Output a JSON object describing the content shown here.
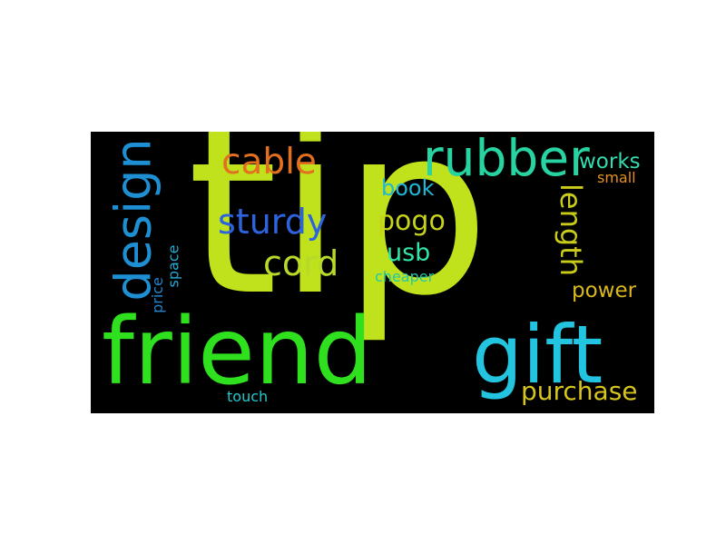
{
  "words": {
    "tip": {
      "text": "tip",
      "color": "#bfe21c"
    },
    "friend": {
      "text": "friend",
      "color": "#2fe01e"
    },
    "gift": {
      "text": "gift",
      "color": "#22c4e0"
    },
    "rubber": {
      "text": "rubber",
      "color": "#27d3a1"
    },
    "design": {
      "text": "design",
      "color": "#1e8fd2"
    },
    "cable": {
      "text": "cable",
      "color": "#e2701f"
    },
    "sturdy": {
      "text": "sturdy",
      "color": "#2e63de"
    },
    "cord": {
      "text": "cord",
      "color": "#b6d92a"
    },
    "length": {
      "text": "length",
      "color": "#c9cc1a"
    },
    "book": {
      "text": "book",
      "color": "#21b6d6"
    },
    "pogo": {
      "text": "pogo",
      "color": "#c7d21b"
    },
    "usb": {
      "text": "usb",
      "color": "#31e6a6"
    },
    "works": {
      "text": "works",
      "color": "#33ddb0"
    },
    "small": {
      "text": "small",
      "color": "#e59020"
    },
    "power": {
      "text": "power",
      "color": "#d9b81c"
    },
    "purchase": {
      "text": "purchase",
      "color": "#d7c41d"
    },
    "cheaper": {
      "text": "cheaper",
      "color": "#22c7a9"
    },
    "price": {
      "text": "price",
      "color": "#1f84d0"
    },
    "space": {
      "text": "space",
      "color": "#21a9d4"
    },
    "touch": {
      "text": "touch",
      "color": "#21c9cc"
    }
  }
}
